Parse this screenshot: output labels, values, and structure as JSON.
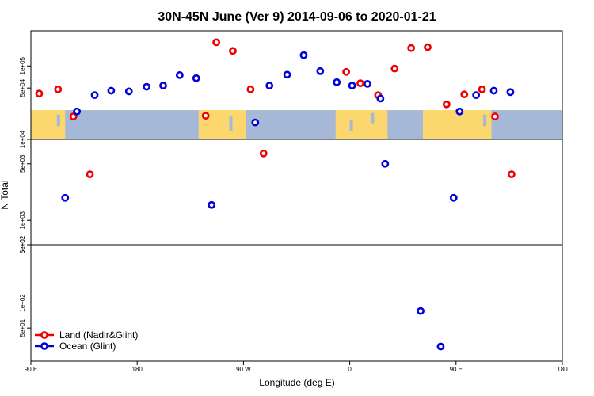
{
  "chart_data": {
    "type": "scatter",
    "title": "30N-45N June (Ver 9)   2014-09-06 to 2020-01-21",
    "xlabel": "Longitude (deg E)",
    "ylabel": "N Total",
    "x_ticks": [
      {
        "value": 90,
        "label": "90 E"
      },
      {
        "value": 180,
        "label": "180"
      },
      {
        "value": 270,
        "label": "90 W"
      },
      {
        "value": 360,
        "label": "0"
      },
      {
        "value": 450,
        "label": "90 E"
      },
      {
        "value": 540,
        "label": "180"
      }
    ],
    "xlim": [
      90,
      540
    ],
    "panels": [
      {
        "id": "upper",
        "scale": "log",
        "ylim": [
          10000,
          300000
        ],
        "y_ticks": [
          {
            "value": 10000,
            "label": "1e+04"
          },
          {
            "value": 50000,
            "label": "5e+04"
          },
          {
            "value": 100000,
            "label": "1e+05"
          }
        ],
        "map_strip_range": [
          10000,
          25000
        ]
      },
      {
        "id": "middle",
        "scale": "log",
        "ylim": [
          500,
          10000
        ],
        "y_ticks": [
          {
            "value": 500,
            "label": "5e+02"
          },
          {
            "value": 1000,
            "label": "1e+03"
          },
          {
            "value": 5000,
            "label": "5e+03"
          }
        ]
      },
      {
        "id": "lower",
        "scale": "log",
        "ylim": [
          20,
          500
        ],
        "y_ticks": [
          {
            "value": 50,
            "label": "5e+01"
          },
          {
            "value": 100,
            "label": "1e+02"
          },
          {
            "value": 500,
            "label": "5e+02"
          }
        ]
      }
    ],
    "series": [
      {
        "name": "Land (Nadir&Glint)",
        "color": "#ee0000",
        "points": [
          {
            "x": 97,
            "y": 42000,
            "panel": "upper"
          },
          {
            "x": 113,
            "y": 48000,
            "panel": "upper"
          },
          {
            "x": 126,
            "y": 20500,
            "panel": "upper"
          },
          {
            "x": 140,
            "y": 3700,
            "panel": "middle"
          },
          {
            "x": 238,
            "y": 21000,
            "panel": "upper"
          },
          {
            "x": 247,
            "y": 210000,
            "panel": "upper"
          },
          {
            "x": 261,
            "y": 160000,
            "panel": "upper"
          },
          {
            "x": 276,
            "y": 48000,
            "panel": "upper"
          },
          {
            "x": 287,
            "y": 6700,
            "panel": "middle"
          },
          {
            "x": 357,
            "y": 83000,
            "panel": "upper"
          },
          {
            "x": 369,
            "y": 58000,
            "panel": "upper"
          },
          {
            "x": 384,
            "y": 40000,
            "panel": "upper"
          },
          {
            "x": 398,
            "y": 92000,
            "panel": "upper"
          },
          {
            "x": 412,
            "y": 175000,
            "panel": "upper"
          },
          {
            "x": 426,
            "y": 180000,
            "panel": "upper"
          },
          {
            "x": 442,
            "y": 30000,
            "panel": "upper"
          },
          {
            "x": 457,
            "y": 41000,
            "panel": "upper"
          },
          {
            "x": 472,
            "y": 48000,
            "panel": "upper"
          },
          {
            "x": 483,
            "y": 20500,
            "panel": "upper"
          },
          {
            "x": 497,
            "y": 3700,
            "panel": "middle"
          }
        ]
      },
      {
        "name": "Ocean (Glint)",
        "color": "#0000dd",
        "points": [
          {
            "x": 119,
            "y": 1900,
            "panel": "middle"
          },
          {
            "x": 129,
            "y": 24000,
            "panel": "upper"
          },
          {
            "x": 144,
            "y": 40000,
            "panel": "upper"
          },
          {
            "x": 158,
            "y": 46000,
            "panel": "upper"
          },
          {
            "x": 173,
            "y": 45000,
            "panel": "upper"
          },
          {
            "x": 188,
            "y": 52000,
            "panel": "upper"
          },
          {
            "x": 202,
            "y": 54000,
            "panel": "upper"
          },
          {
            "x": 216,
            "y": 75000,
            "panel": "upper"
          },
          {
            "x": 230,
            "y": 68000,
            "panel": "upper"
          },
          {
            "x": 243,
            "y": 1550,
            "panel": "middle"
          },
          {
            "x": 280,
            "y": 17000,
            "panel": "upper"
          },
          {
            "x": 292,
            "y": 54000,
            "panel": "upper"
          },
          {
            "x": 307,
            "y": 76000,
            "panel": "upper"
          },
          {
            "x": 321,
            "y": 140000,
            "panel": "upper"
          },
          {
            "x": 335,
            "y": 85000,
            "panel": "upper"
          },
          {
            "x": 349,
            "y": 60000,
            "panel": "upper"
          },
          {
            "x": 362,
            "y": 54000,
            "panel": "upper"
          },
          {
            "x": 375,
            "y": 57000,
            "panel": "upper"
          },
          {
            "x": 386,
            "y": 36000,
            "panel": "upper"
          },
          {
            "x": 390,
            "y": 5000,
            "panel": "middle"
          },
          {
            "x": 420,
            "y": 80,
            "panel": "lower"
          },
          {
            "x": 437,
            "y": 30,
            "panel": "lower"
          },
          {
            "x": 448,
            "y": 1900,
            "panel": "middle"
          },
          {
            "x": 453,
            "y": 24000,
            "panel": "upper"
          },
          {
            "x": 467,
            "y": 40000,
            "panel": "upper"
          },
          {
            "x": 482,
            "y": 46000,
            "panel": "upper"
          },
          {
            "x": 496,
            "y": 44000,
            "panel": "upper"
          }
        ]
      }
    ],
    "legend": {
      "position": "bottom-left"
    },
    "map_colors": {
      "land": "#fcd76e",
      "ocean": "#a6b8d8"
    },
    "grid": false
  }
}
